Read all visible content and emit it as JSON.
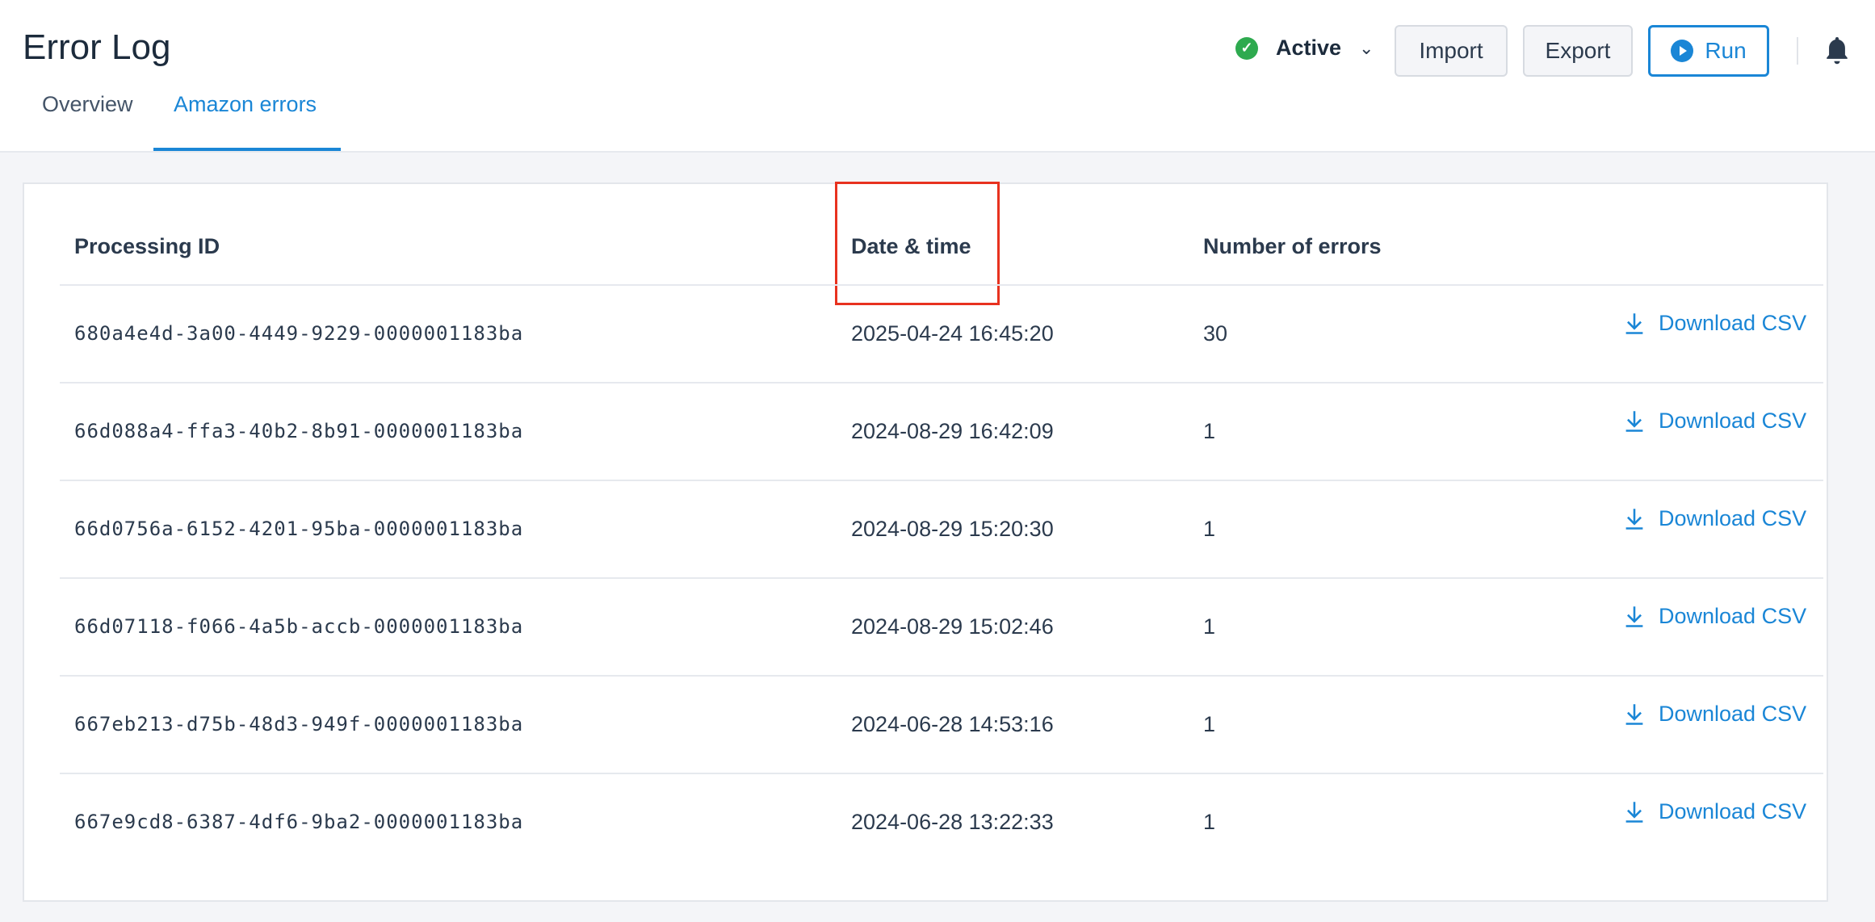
{
  "header": {
    "title": "Error Log",
    "tabs": [
      {
        "label": "Overview",
        "active": false
      },
      {
        "label": "Amazon errors",
        "active": true
      }
    ],
    "status": {
      "label": "Active",
      "color": "#2eaa4f"
    },
    "buttons": {
      "import": "Import",
      "export": "Export",
      "run": "Run"
    }
  },
  "accent": "#1a86d6",
  "table": {
    "columns": [
      "Processing ID",
      "Date & time",
      "Number of errors"
    ],
    "download_label": "Download CSV",
    "rows": [
      {
        "id": "680a4e4d-3a00-4449-9229-0000001183ba",
        "date": "2025-04-24 16:45:20",
        "errors": "30"
      },
      {
        "id": "66d088a4-ffa3-40b2-8b91-0000001183ba",
        "date": "2024-08-29 16:42:09",
        "errors": "1"
      },
      {
        "id": "66d0756a-6152-4201-95ba-0000001183ba",
        "date": "2024-08-29 15:20:30",
        "errors": "1"
      },
      {
        "id": "66d07118-f066-4a5b-accb-0000001183ba",
        "date": "2024-08-29 15:02:46",
        "errors": "1"
      },
      {
        "id": "667eb213-d75b-48d3-949f-0000001183ba",
        "date": "2024-06-28 14:53:16",
        "errors": "1"
      },
      {
        "id": "667e9cd8-6387-4df6-9ba2-0000001183ba",
        "date": "2024-06-28 13:22:33",
        "errors": "1"
      }
    ]
  }
}
